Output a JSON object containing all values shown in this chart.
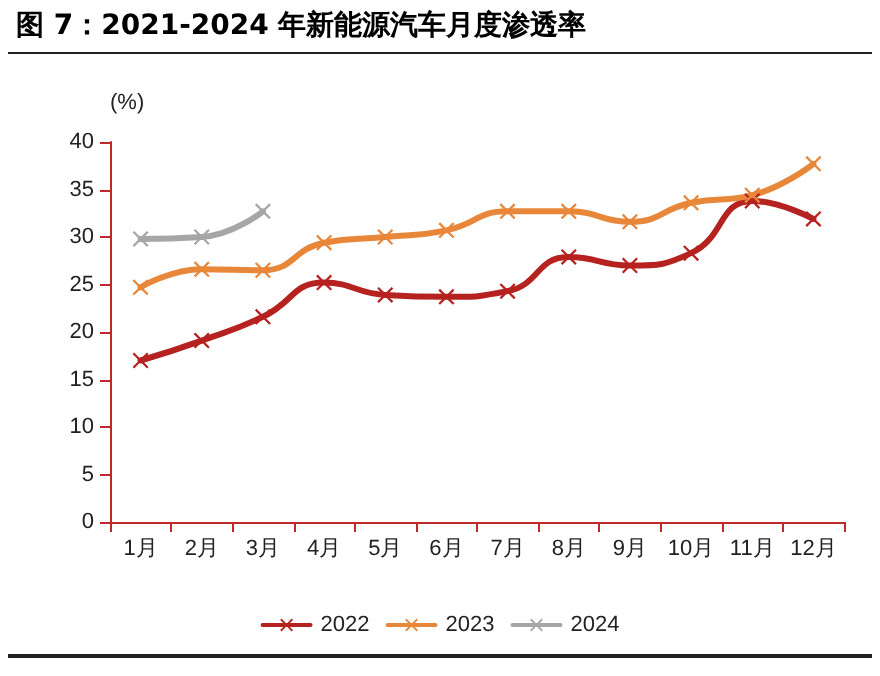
{
  "chart_data": {
    "type": "line",
    "title": "图 7：2021-2024 年新能源汽车月度渗透率",
    "ylabel": "(%)",
    "categories": [
      "1月",
      "2月",
      "3月",
      "4月",
      "5月",
      "6月",
      "7月",
      "8月",
      "9月",
      "10月",
      "11月",
      "12月"
    ],
    "series": [
      {
        "name": "2022",
        "color": "#b5221f",
        "values": [
          17.0,
          19.1,
          21.6,
          25.2,
          23.9,
          23.7,
          24.3,
          27.9,
          27.0,
          28.3,
          33.8,
          31.9
        ]
      },
      {
        "name": "2023",
        "color": "#e8873a",
        "values": [
          24.7,
          26.6,
          26.5,
          29.4,
          30.0,
          30.7,
          32.7,
          32.7,
          31.6,
          33.6,
          34.4,
          37.7
        ]
      },
      {
        "name": "2024",
        "color": "#a6a6a6",
        "values": [
          29.8,
          30.0,
          32.7,
          null,
          null,
          null,
          null,
          null,
          null,
          null,
          null,
          null
        ]
      }
    ],
    "ylim": [
      0,
      40
    ],
    "yticks": [
      0,
      5,
      10,
      15,
      20,
      25,
      30,
      35,
      40
    ],
    "grid": false,
    "legend": "bottom",
    "marker": "cross",
    "line_style": "solid"
  }
}
